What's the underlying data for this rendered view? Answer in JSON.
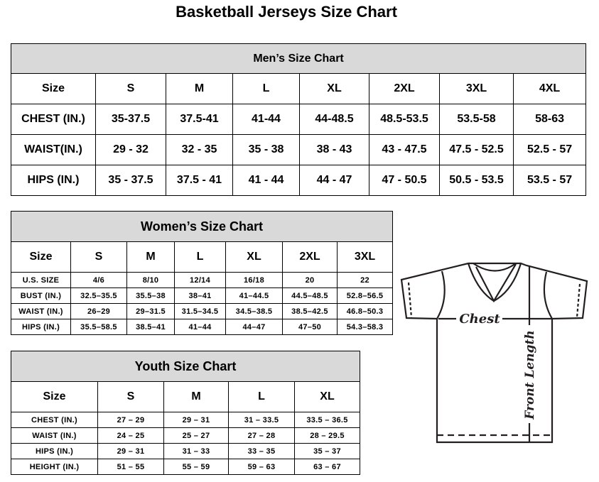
{
  "title": "Basketball Jerseys Size Chart",
  "men": {
    "title": "Men’s Size Chart",
    "headers": [
      "Size",
      "S",
      "M",
      "L",
      "XL",
      "2XL",
      "3XL",
      "4XL"
    ],
    "rows": [
      [
        "CHEST (IN.)",
        "35-37.5",
        "37.5-41",
        "41-44",
        "44-48.5",
        "48.5-53.5",
        "53.5-58",
        "58-63"
      ],
      [
        "WAIST(IN.)",
        "29 - 32",
        "32 - 35",
        "35 - 38",
        "38 - 43",
        "43 - 47.5",
        "47.5 - 52.5",
        "52.5 - 57"
      ],
      [
        "HIPS (IN.)",
        "35 - 37.5",
        "37.5 - 41",
        "41 - 44",
        "44 - 47",
        "47 - 50.5",
        "50.5 - 53.5",
        "53.5 - 57"
      ]
    ]
  },
  "women": {
    "title": "Women’s Size Chart",
    "headers": [
      "Size",
      "S",
      "M",
      "L",
      "XL",
      "2XL",
      "3XL"
    ],
    "rows": [
      [
        "U.S. SIZE",
        "4/6",
        "8/10",
        "12/14",
        "16/18",
        "20",
        "22"
      ],
      [
        "BUST (IN.)",
        "32.5–35.5",
        "35.5–38",
        "38–41",
        "41–44.5",
        "44.5–48.5",
        "52.8–56.5"
      ],
      [
        "WAIST (IN.)",
        "26–29",
        "29–31.5",
        "31.5–34.5",
        "34.5–38.5",
        "38.5–42.5",
        "46.8–50.3"
      ],
      [
        "HIPS (IN.)",
        "35.5–58.5",
        "38.5–41",
        "41–44",
        "44–47",
        "47–50",
        "54.3–58.3"
      ]
    ]
  },
  "youth": {
    "title": "Youth Size Chart",
    "headers": [
      "Size",
      "S",
      "M",
      "L",
      "XL"
    ],
    "rows": [
      [
        "CHEST (IN.)",
        "27 – 29",
        "29 – 31",
        "31 – 33.5",
        "33.5 – 36.5"
      ],
      [
        "WAIST (IN.)",
        "24 – 25",
        "25 – 27",
        "27 – 28",
        "28 – 29.5"
      ],
      [
        "HIPS (IN.)",
        "29 – 31",
        "31 – 33",
        "33 – 35",
        "35 – 37"
      ],
      [
        "HEIGHT (IN.)",
        "51 – 55",
        "55 – 59",
        "59 – 63",
        "63 – 67"
      ]
    ]
  },
  "diagram": {
    "chest_label": "Chest",
    "length_label": "Front Length"
  },
  "colors": {
    "header_bg": "#d9d9d9",
    "line": "#231f20"
  }
}
